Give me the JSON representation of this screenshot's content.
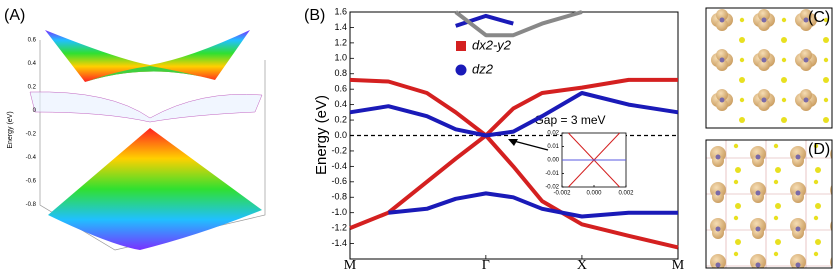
{
  "panels": [
    {
      "label": "(A)",
      "axis_label": "Energy (eV)",
      "ticks": [
        "0.6",
        "0.4",
        "0.2",
        "0",
        "-0.2",
        "-0.4",
        "-0.6",
        "-0.8"
      ]
    },
    {
      "label": "(C)"
    },
    {
      "label": "(D)"
    }
  ],
  "chart_data": [
    {
      "type": "line",
      "label": "(B)",
      "y_label": "Energy (eV)",
      "x": [
        0,
        0.4,
        0.8,
        1.1,
        1.414,
        1.7,
        2.0,
        2.414,
        2.9,
        3.414
      ],
      "xlim": [
        0,
        3.414
      ],
      "xticks": [
        {
          "value": 0,
          "label": "M"
        },
        {
          "value": 1.414,
          "label": "Γ"
        },
        {
          "value": 2.414,
          "label": "X"
        },
        {
          "value": 3.414,
          "label": "M"
        }
      ],
      "ylim": [
        -1.6,
        1.6
      ],
      "yticks": [
        {
          "value": 1.6,
          "label": "1.6"
        },
        1.4,
        1.2,
        {
          "value": 1,
          "label": "1.0"
        },
        0.8,
        0.6,
        0.4,
        0.2,
        {
          "value": 0,
          "label": "0.0"
        },
        -0.2,
        -0.4,
        -0.6,
        -0.8,
        {
          "value": -1,
          "label": "-1.0"
        },
        -1.2,
        -1.4
      ],
      "reference_line": 0,
      "legend": "top-center",
      "series": [
        {
          "name": "dx2-y2",
          "color": "#d42020",
          "values": [
            -1.2,
            -1.0,
            -0.6,
            -0.3,
            0,
            0.35,
            0.55,
            0.62,
            0.72,
            0.72
          ]
        },
        {
          "color": "#d42020",
          "values": [
            0.72,
            0.7,
            0.55,
            0.3,
            0,
            -0.4,
            -0.85,
            -1.15,
            -1.3,
            -1.45
          ]
        },
        {
          "name": "dz2",
          "color": "#1a1ab8",
          "values": [
            0.3,
            0.38,
            0.25,
            0.08,
            0,
            0.05,
            0.25,
            0.55,
            0.4,
            0.3
          ]
        },
        {
          "color": "#1a1ab8",
          "values": [
            null,
            -1.0,
            -0.95,
            -0.82,
            -0.75,
            -0.8,
            -0.95,
            -1.05,
            -1.0,
            -1.0
          ]
        },
        {
          "color": "#1a1ab8",
          "values": [
            null,
            null,
            null,
            1.42,
            1.55,
            1.45,
            null,
            null,
            null,
            null
          ]
        },
        {
          "color": "#888888",
          "values": [
            null,
            null,
            null,
            1.6,
            1.3,
            1.3,
            1.45,
            1.6,
            null,
            null
          ]
        }
      ],
      "annotation": "Gap = 3 meV"
    },
    {
      "type": "line",
      "x": [
        -0.002,
        -0.0016,
        0,
        0.0016,
        0.002
      ],
      "xlim": [
        -0.002,
        0.002
      ],
      "xticks": [
        -0.002,
        {
          "value": 0,
          "label": "0.000"
        },
        0.002
      ],
      "ylim": [
        -0.02,
        0.02
      ],
      "yticks": [
        0.02,
        0.01,
        {
          "value": 0,
          "label": "0.00"
        },
        -0.01,
        -0.02
      ],
      "series": [
        {
          "color": "#d42020",
          "values": [
            null,
            0.02,
            0,
            -0.02,
            null
          ]
        },
        {
          "color": "#d42020",
          "values": [
            null,
            -0.02,
            0,
            0.02,
            null
          ]
        },
        {
          "color": "#5a5ae0",
          "values": [
            0,
            0,
            0,
            0,
            0
          ]
        }
      ]
    }
  ]
}
